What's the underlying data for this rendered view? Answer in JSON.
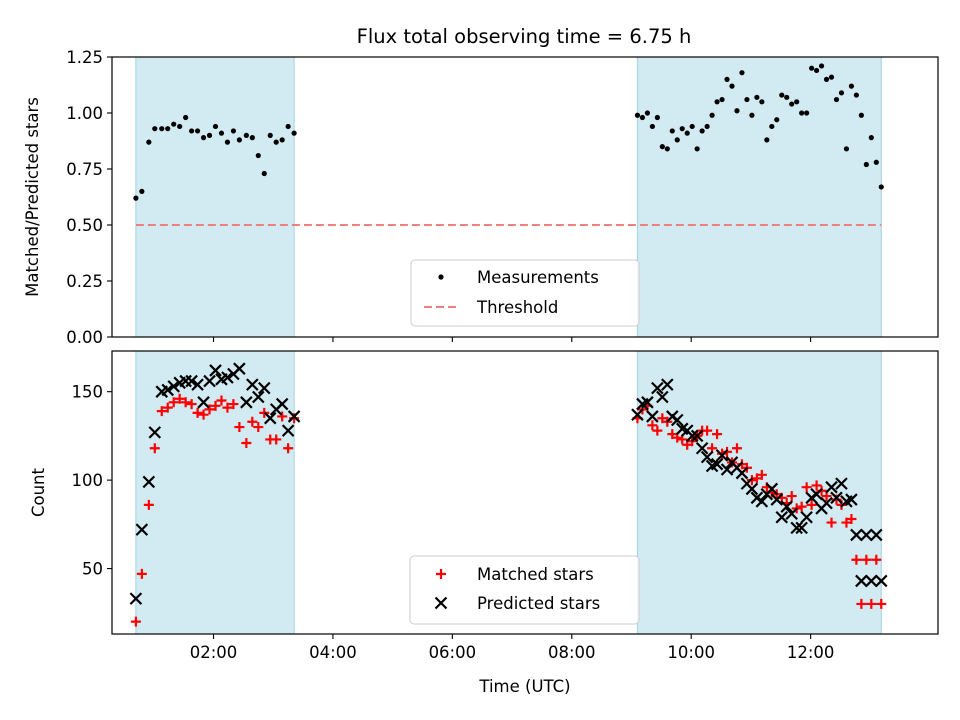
{
  "figure": {
    "title": "Flux total observing time = 6.75 h",
    "colors": {
      "span": "#add8e6",
      "threshold": "#f08080",
      "measurement": "#000000",
      "matched": "#ff0000",
      "predicted": "#000000"
    }
  },
  "chart_data": [
    {
      "type": "scatter",
      "title": "Flux total observing time = 6.75 h",
      "ylabel": "Matched/Predicted stars",
      "xlabel": "",
      "xlim": [
        "00:18",
        "14:08"
      ],
      "ylim": [
        0,
        1.25
      ],
      "yticks": [
        "0.00",
        "0.25",
        "0.50",
        "0.75",
        "1.00",
        "1.25"
      ],
      "xticks": [
        "02:00",
        "04:00",
        "06:00",
        "08:00",
        "10:00",
        "12:00"
      ],
      "shaded_spans": [
        [
          "00:42",
          "03:21"
        ],
        [
          "09:06",
          "13:11"
        ]
      ],
      "legend": {
        "placement": "lower-center",
        "entries": [
          "Measurements",
          "Threshold"
        ]
      },
      "series": [
        {
          "name": "Measurements",
          "marker": "dot",
          "x": [
            "00:42",
            "00:48",
            "00:55",
            "01:01",
            "01:08",
            "01:14",
            "01:20",
            "01:26",
            "01:32",
            "01:38",
            "01:44",
            "01:50",
            "01:56",
            "02:02",
            "02:08",
            "02:14",
            "02:20",
            "02:26",
            "02:33",
            "02:39",
            "02:45",
            "02:51",
            "02:57",
            "03:03",
            "03:09",
            "03:15",
            "03:21",
            "09:06",
            "09:11",
            "09:16",
            "09:21",
            "09:26",
            "09:31",
            "09:36",
            "09:41",
            "09:46",
            "09:51",
            "09:56",
            "10:01",
            "10:06",
            "10:11",
            "10:16",
            "10:21",
            "10:26",
            "10:31",
            "10:36",
            "10:41",
            "10:46",
            "10:51",
            "10:56",
            "11:01",
            "11:06",
            "11:11",
            "11:16",
            "11:21",
            "11:26",
            "11:31",
            "11:36",
            "11:41",
            "11:46",
            "11:51",
            "11:56",
            "12:01",
            "12:06",
            "12:11",
            "12:16",
            "12:21",
            "12:26",
            "12:31",
            "12:36",
            "12:41",
            "12:46",
            "12:51",
            "12:56",
            "13:01",
            "13:06",
            "13:11"
          ],
          "y": [
            0.62,
            0.65,
            0.87,
            0.93,
            0.93,
            0.93,
            0.95,
            0.94,
            0.98,
            0.92,
            0.92,
            0.89,
            0.9,
            0.94,
            0.91,
            0.87,
            0.92,
            0.88,
            0.9,
            0.89,
            0.81,
            0.73,
            0.9,
            0.87,
            0.88,
            0.94,
            0.91,
            0.99,
            0.98,
            1.0,
            0.94,
            0.98,
            0.85,
            0.84,
            0.92,
            0.88,
            0.93,
            0.91,
            0.94,
            0.84,
            0.92,
            0.94,
            0.99,
            1.05,
            1.06,
            1.15,
            1.12,
            1.01,
            1.18,
            1.06,
            0.99,
            1.07,
            1.05,
            0.88,
            0.94,
            0.97,
            1.08,
            1.07,
            1.04,
            1.05,
            1.0,
            1.0,
            1.2,
            1.19,
            1.21,
            1.15,
            1.16,
            1.06,
            1.09,
            0.84,
            1.12,
            1.08,
            0.99,
            0.77,
            0.89,
            0.78,
            0.67
          ]
        },
        {
          "name": "Threshold",
          "marker": "dashed-line",
          "x": [
            "00:42",
            "13:11"
          ],
          "y": [
            0.5,
            0.5
          ]
        }
      ]
    },
    {
      "type": "scatter",
      "title": "",
      "ylabel": "Count",
      "xlabel": "Time (UTC)",
      "xlim": [
        "00:18",
        "14:08"
      ],
      "ylim": [
        13,
        173
      ],
      "yticks": [
        "50",
        "100",
        "150"
      ],
      "xticks": [
        "02:00",
        "04:00",
        "06:00",
        "08:00",
        "10:00",
        "12:00"
      ],
      "shaded_spans": [
        [
          "00:42",
          "03:21"
        ],
        [
          "09:06",
          "13:11"
        ]
      ],
      "legend": {
        "placement": "lower-center",
        "entries": [
          "Matched stars",
          "Predicted stars"
        ]
      },
      "series": [
        {
          "name": "Matched stars",
          "marker": "plus",
          "x": [
            "00:42",
            "00:48",
            "00:55",
            "01:01",
            "01:08",
            "01:14",
            "01:20",
            "01:26",
            "01:32",
            "01:38",
            "01:44",
            "01:50",
            "01:56",
            "02:02",
            "02:08",
            "02:14",
            "02:20",
            "02:26",
            "02:33",
            "02:39",
            "02:45",
            "02:51",
            "02:57",
            "03:03",
            "03:09",
            "03:15",
            "03:21",
            "09:06",
            "09:11",
            "09:16",
            "09:21",
            "09:26",
            "09:31",
            "09:36",
            "09:41",
            "09:46",
            "09:51",
            "09:56",
            "10:01",
            "10:06",
            "10:11",
            "10:16",
            "10:21",
            "10:26",
            "10:31",
            "10:36",
            "10:41",
            "10:46",
            "10:51",
            "10:56",
            "11:01",
            "11:06",
            "11:11",
            "11:16",
            "11:21",
            "11:26",
            "11:31",
            "11:36",
            "11:41",
            "11:46",
            "11:51",
            "11:56",
            "12:01",
            "12:06",
            "12:11",
            "12:16",
            "12:21",
            "12:26",
            "12:31",
            "12:36",
            "12:41",
            "12:46",
            "12:51",
            "12:56",
            "13:01",
            "13:06",
            "13:11"
          ],
          "y": [
            20,
            47,
            86,
            118,
            139,
            141,
            144,
            146,
            144,
            143,
            138,
            137,
            140,
            142,
            145,
            141,
            143,
            130,
            121,
            133,
            130,
            138,
            123,
            123,
            136,
            118,
            135,
            135,
            140,
            142,
            131,
            128,
            135,
            133,
            126,
            124,
            123,
            120,
            122,
            125,
            128,
            128,
            118,
            126,
            115,
            116,
            110,
            118,
            109,
            107,
            100,
            101,
            103,
            96,
            93,
            92,
            90,
            87,
            91,
            84,
            85,
            96,
            86,
            97,
            94,
            91,
            76,
            89,
            86,
            76,
            78,
            55,
            30,
            55,
            30,
            55,
            30
          ]
        },
        {
          "name": "Predicted stars",
          "marker": "x",
          "x": [
            "00:42",
            "00:48",
            "00:55",
            "01:01",
            "01:08",
            "01:14",
            "01:20",
            "01:26",
            "01:32",
            "01:38",
            "01:44",
            "01:50",
            "01:56",
            "02:02",
            "02:08",
            "02:14",
            "02:20",
            "02:26",
            "02:33",
            "02:39",
            "02:45",
            "02:51",
            "02:57",
            "03:03",
            "03:09",
            "03:15",
            "03:21",
            "09:06",
            "09:11",
            "09:16",
            "09:21",
            "09:26",
            "09:31",
            "09:36",
            "09:41",
            "09:46",
            "09:51",
            "09:56",
            "10:01",
            "10:06",
            "10:11",
            "10:16",
            "10:21",
            "10:26",
            "10:31",
            "10:36",
            "10:41",
            "10:46",
            "10:51",
            "10:56",
            "11:01",
            "11:06",
            "11:11",
            "11:16",
            "11:21",
            "11:26",
            "11:31",
            "11:36",
            "11:41",
            "11:46",
            "11:51",
            "11:56",
            "12:01",
            "12:06",
            "12:11",
            "12:16",
            "12:21",
            "12:26",
            "12:31",
            "12:36",
            "12:41",
            "12:46",
            "12:51",
            "12:56",
            "13:01",
            "13:06",
            "13:11"
          ],
          "y": [
            33,
            72,
            99,
            127,
            150,
            151,
            153,
            155,
            156,
            156,
            154,
            144,
            156,
            162,
            157,
            158,
            160,
            163,
            144,
            154,
            147,
            152,
            135,
            140,
            143,
            128,
            136,
            137,
            143,
            144,
            136,
            152,
            147,
            154,
            136,
            134,
            129,
            128,
            125,
            125,
            118,
            113,
            108,
            109,
            114,
            106,
            110,
            107,
            104,
            98,
            95,
            90,
            88,
            92,
            95,
            89,
            79,
            85,
            81,
            73,
            73,
            79,
            90,
            92,
            84,
            87,
            96,
            90,
            98,
            88,
            89,
            69,
            43,
            69,
            43,
            69,
            43
          ]
        }
      ]
    }
  ]
}
